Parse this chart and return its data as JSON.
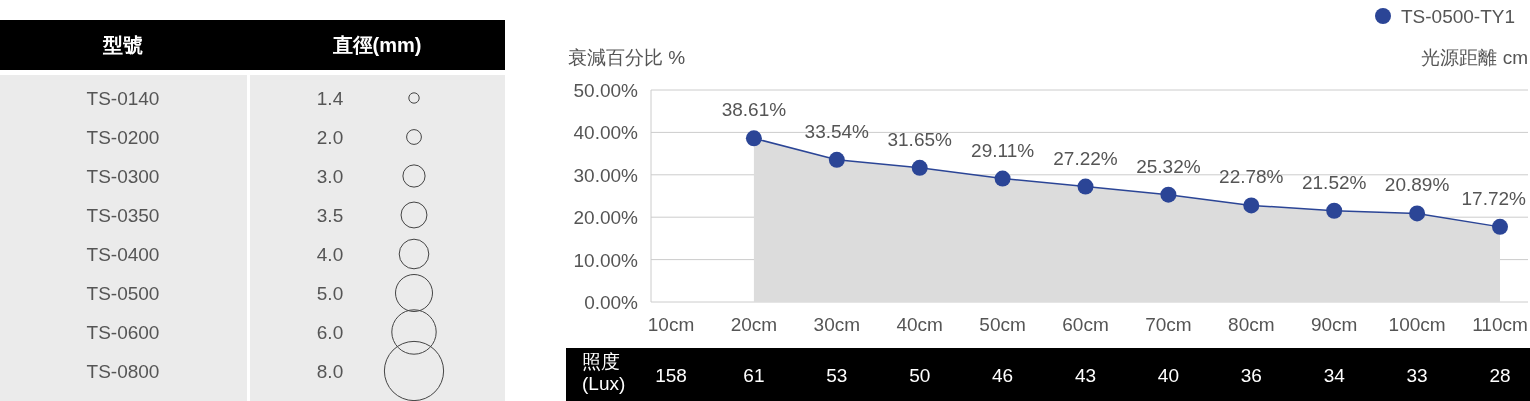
{
  "chart_data": [
    {
      "type": "other",
      "annotations": [
        "型號",
        "直徑(mm)"
      ],
      "categories": [
        "TS-0140",
        "TS-0200",
        "TS-0300",
        "TS-0350",
        "TS-0400",
        "TS-0500",
        "TS-0600",
        "TS-0800"
      ],
      "values": [
        1.4,
        2.0,
        3.0,
        3.5,
        4.0,
        5.0,
        6.0,
        8.0
      ],
      "value_labels": [
        "1.4",
        "2.0",
        "3.0",
        "3.5",
        "4.0",
        "5.0",
        "6.0",
        "8.0"
      ]
    },
    {
      "type": "area",
      "ylabel": "衰減百分比 %",
      "xlabel": "光源距離 cm",
      "categories": [
        "10cm",
        "20cm",
        "30cm",
        "40cm",
        "50cm",
        "60cm",
        "70cm",
        "80cm",
        "90cm",
        "100cm",
        "110cm"
      ],
      "series": [
        {
          "name": "TS-0500-TY1",
          "color": "#2b4596",
          "values": [
            null,
            38.61,
            33.54,
            31.65,
            29.11,
            27.22,
            25.32,
            22.78,
            21.52,
            20.89,
            17.72
          ],
          "value_labels": [
            null,
            "38.61%",
            "33.54%",
            "31.65%",
            "29.11%",
            "27.22%",
            "25.32%",
            "22.78%",
            "21.52%",
            "20.89%",
            "17.72%"
          ]
        }
      ],
      "ylim": [
        0,
        50
      ],
      "yticks": [
        {
          "value": 0,
          "label": "0.00%"
        },
        {
          "value": 10,
          "label": "10.00%"
        },
        {
          "value": 20,
          "label": "20.00%"
        },
        {
          "value": 30,
          "label": "30.00%"
        },
        {
          "value": 40,
          "label": "40.00%"
        },
        {
          "value": 50,
          "label": "50.00%"
        }
      ],
      "grid": "y",
      "legend": "top right",
      "marker": "circle"
    },
    {
      "type": "other",
      "ylabel": "照度 (Lux)",
      "categories": [
        null,
        null,
        null,
        null,
        null,
        null,
        null,
        null,
        null,
        null,
        null
      ],
      "values": [
        158,
        61,
        53,
        50,
        46,
        43,
        40,
        36,
        34,
        33,
        28
      ],
      "data_labels": true
    }
  ]
}
